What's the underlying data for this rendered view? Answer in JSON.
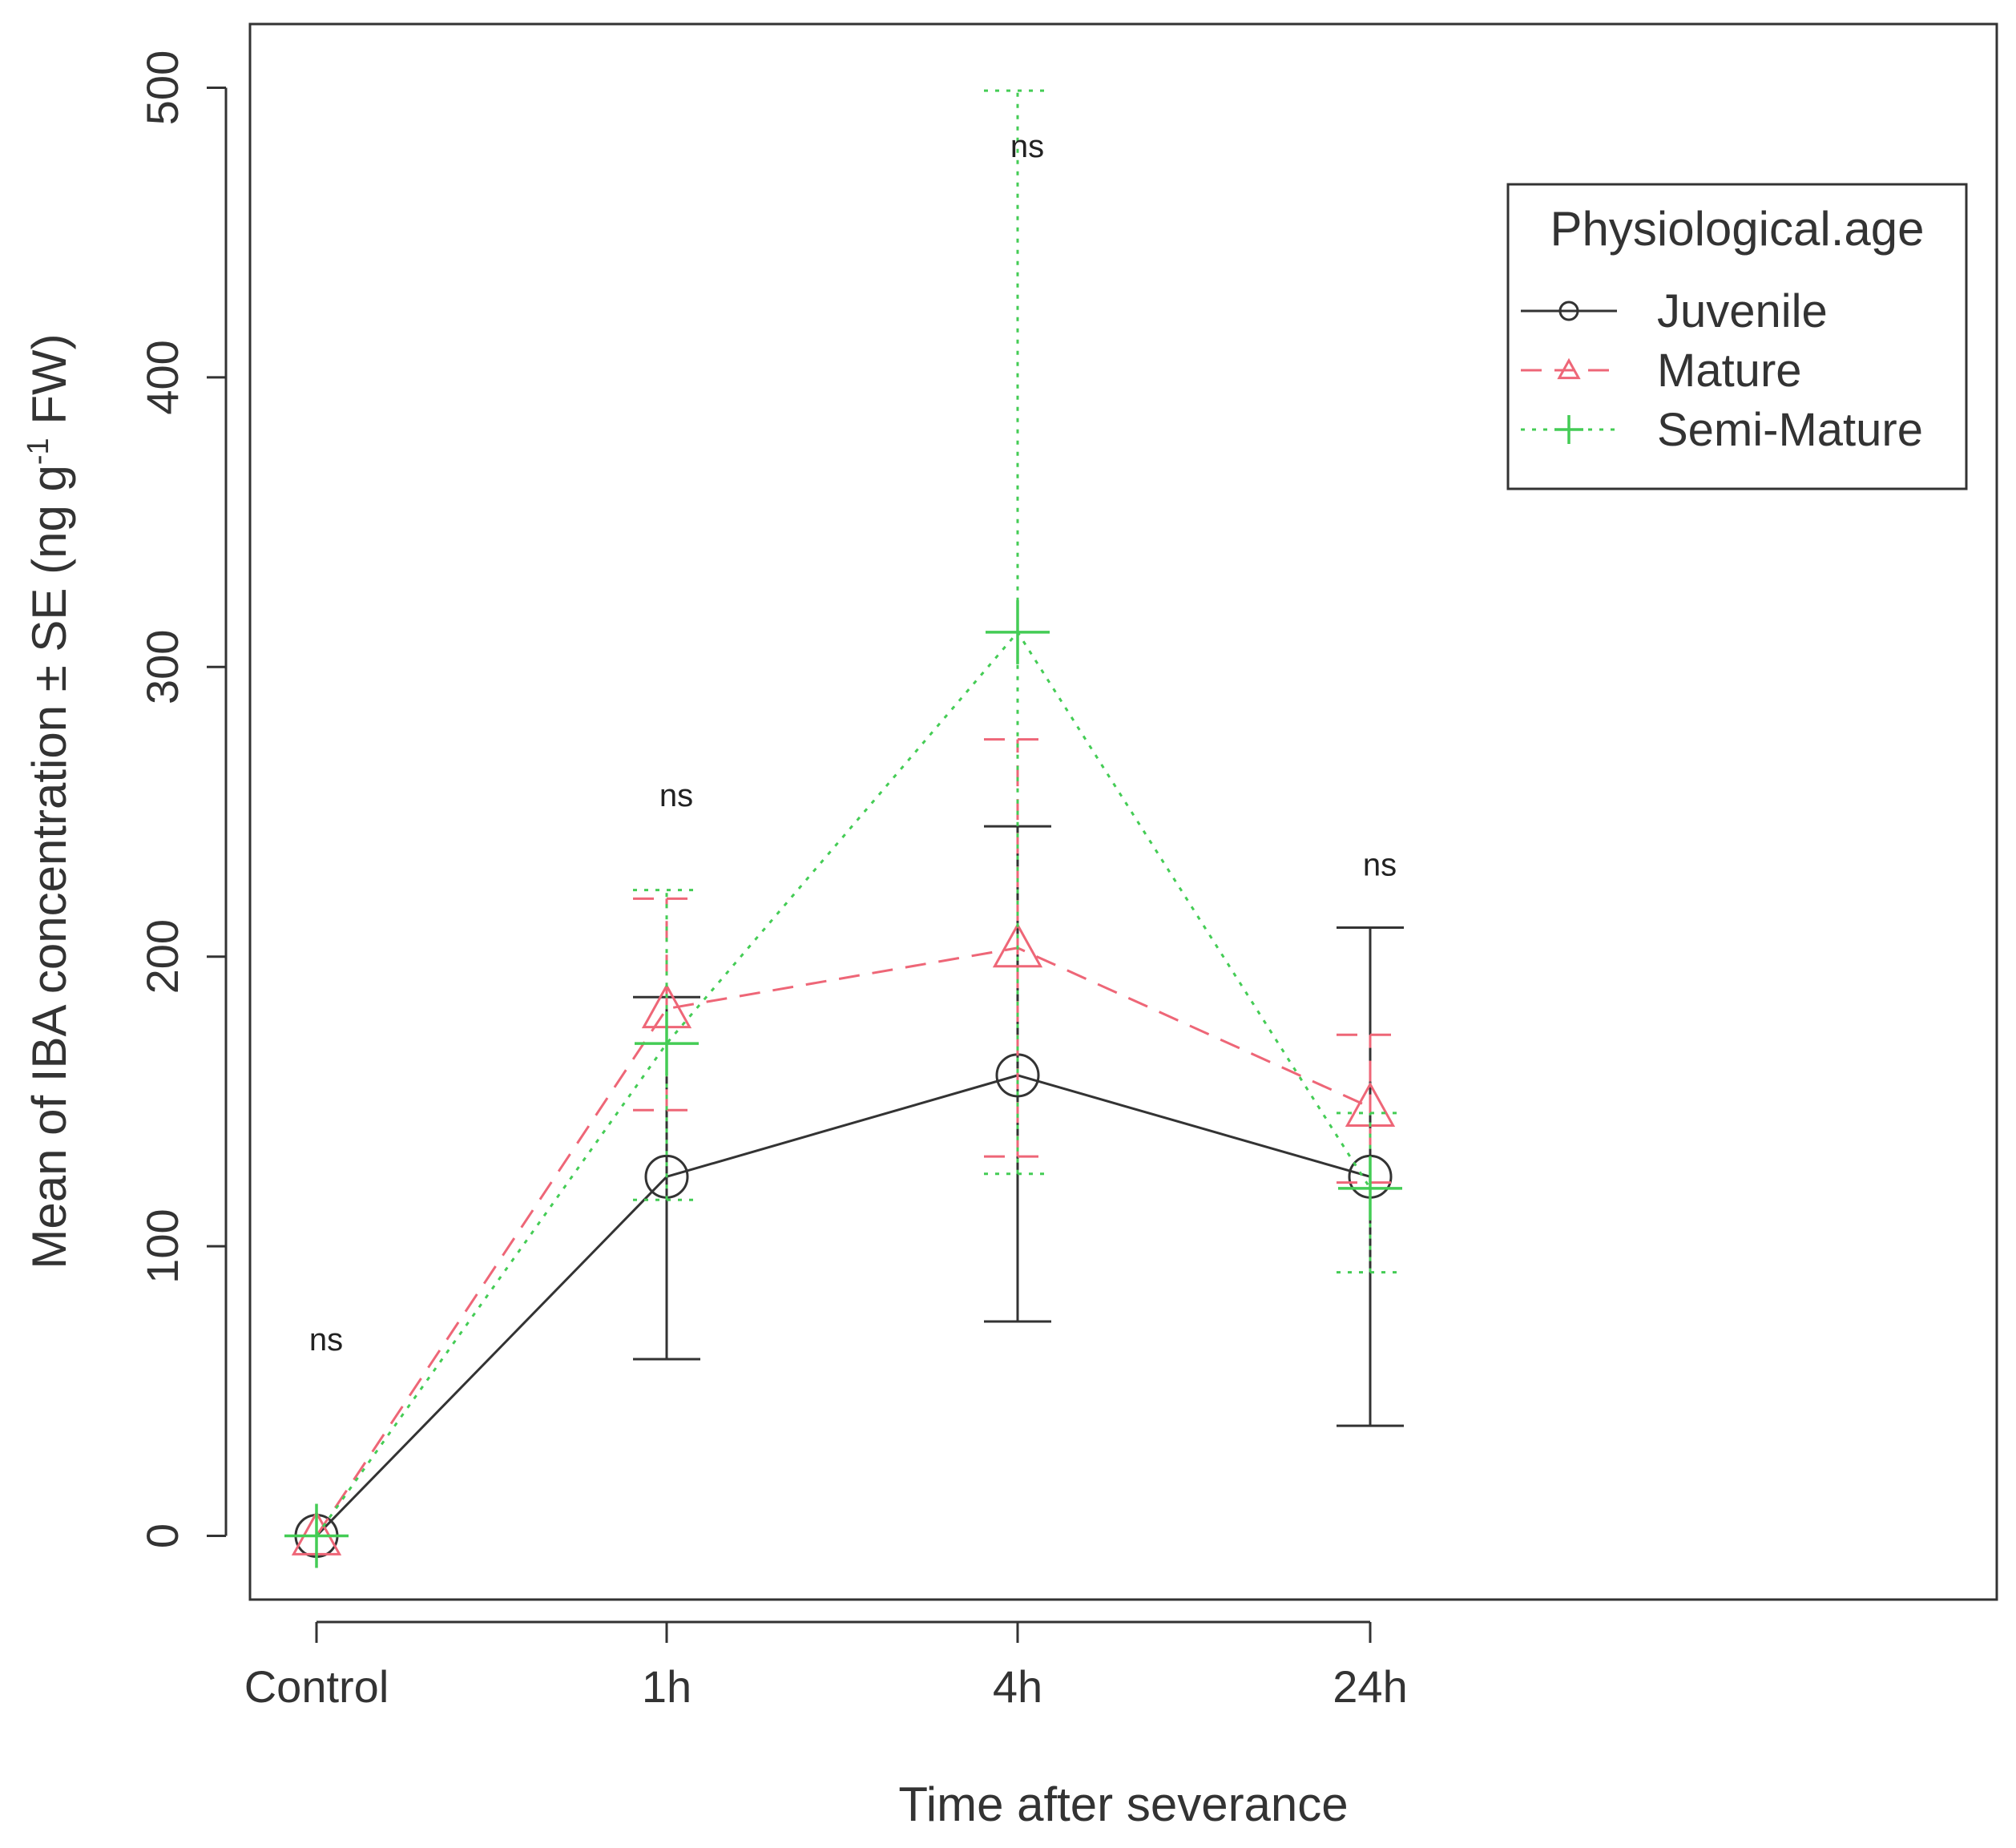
{
  "chart_data": {
    "type": "line",
    "title": "",
    "xlabel": "Time after severance",
    "ylabel": "Mean of IBA concentration ± SE (ng g-1 FW)",
    "ylabel_parts": {
      "main": "Mean of IBA concentration ± SE (ng g",
      "superscript": "-1",
      "tail": " FW)"
    },
    "categories": [
      "Control",
      "1h",
      "4h",
      "24h"
    ],
    "y_ticks": [
      0,
      100,
      200,
      300,
      400,
      500
    ],
    "ylim": [
      -22,
      522
    ],
    "grid": false,
    "legend": {
      "title": "Physiological.age",
      "placement": "top-right"
    },
    "series": [
      {
        "name": "Juvenile",
        "color": "#333333",
        "marker": "circle",
        "line_style": "solid",
        "values": [
          0,
          124,
          159,
          124
        ],
        "lower": [
          0,
          61,
          74,
          38
        ],
        "upper": [
          0,
          186,
          245,
          210
        ]
      },
      {
        "name": "Mature",
        "color": "#ee6677",
        "marker": "triangle",
        "line_style": "dashed",
        "values": [
          0,
          182,
          203,
          148
        ],
        "lower": [
          0,
          147,
          131,
          122
        ],
        "upper": [
          0,
          220,
          275,
          173
        ]
      },
      {
        "name": "Semi-Mature",
        "color": "#44cc55",
        "marker": "plus",
        "line_style": "dotted",
        "values": [
          0,
          170,
          312,
          120
        ],
        "lower": [
          0,
          116,
          125,
          91
        ],
        "upper": [
          0,
          223,
          499,
          146
        ]
      }
    ],
    "annotations": [
      {
        "text": "ns",
        "category": "Control",
        "y": 64
      },
      {
        "text": "ns",
        "category": "1h",
        "y": 252
      },
      {
        "text": "ns",
        "category": "4h",
        "y": 476
      },
      {
        "text": "ns",
        "category": "24h",
        "y": 228
      }
    ]
  }
}
